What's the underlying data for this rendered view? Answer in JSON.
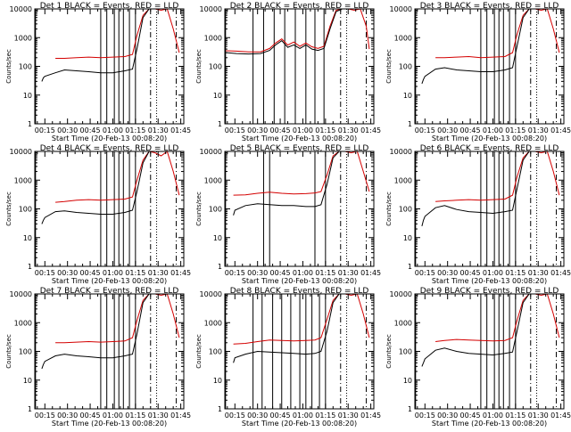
{
  "chart_data": [
    {
      "type": "line",
      "title": "Det 1  BLACK = Events, RED = LLD",
      "xlabel": "Start Time (20-Feb-13 00:08:20)",
      "ylabel": "Counts/sec",
      "xlim_minutes": [
        8.33,
        107
      ],
      "ylim": [
        1,
        10000
      ],
      "yscale": "log",
      "x_ticks": [
        "00:15",
        "00:30",
        "00:45",
        "01:00",
        "01:15",
        "01:30",
        "01:45"
      ],
      "y_ticks": [
        "1",
        "10",
        "100",
        "1000",
        "10000"
      ],
      "solid_lines_minutes": [
        8.8,
        52,
        56,
        61,
        64,
        67,
        71,
        75
      ],
      "dashdot_lines_minutes": [
        85,
        102
      ],
      "dotted_lines_minutes": [
        89
      ],
      "series": [
        {
          "color": "#d40000",
          "x": [
            22,
            28,
            36,
            44,
            52,
            60,
            68,
            73,
            76,
            80,
            84,
            88,
            92,
            96,
            100,
            104
          ],
          "values": [
            190,
            190,
            200,
            210,
            200,
            210,
            220,
            260,
            1200,
            6000,
            12000,
            12000,
            9000,
            12000,
            2000,
            300
          ]
        },
        {
          "color": "#000000",
          "x": [
            13,
            14,
            15,
            22,
            28,
            36,
            44,
            52,
            60,
            68,
            73,
            76,
            80,
            84,
            88
          ],
          "values": [
            30,
            40,
            45,
            60,
            75,
            70,
            65,
            60,
            60,
            70,
            80,
            400,
            5000,
            11000,
            12000
          ]
        }
      ]
    },
    {
      "type": "line",
      "title": "Det 2  BLACK = Events, RED = LLD",
      "xlabel": "Start Time (20-Feb-13 00:08:20)",
      "ylabel": "Counts/sec",
      "xlim_minutes": [
        8.33,
        107
      ],
      "ylim": [
        1,
        10000
      ],
      "yscale": "log",
      "x_ticks": [
        "00:15",
        "00:30",
        "00:45",
        "01:00",
        "01:15",
        "01:30",
        "01:45"
      ],
      "y_ticks": [
        "1",
        "10",
        "100",
        "1000",
        "10000"
      ],
      "solid_lines_minutes": [
        8.8,
        27,
        34,
        41,
        48,
        55,
        62,
        68,
        74
      ],
      "dashdot_lines_minutes": [
        85,
        102
      ],
      "dotted_lines_minutes": [
        89
      ],
      "series": [
        {
          "color": "#d40000",
          "x": [
            9,
            16,
            24,
            32,
            38,
            42,
            46,
            50,
            54,
            58,
            62,
            66,
            70,
            74,
            78,
            82,
            86,
            90,
            94,
            98,
            102,
            104
          ],
          "values": [
            350,
            340,
            320,
            320,
            420,
            650,
            900,
            550,
            700,
            500,
            650,
            480,
            420,
            500,
            2500,
            9000,
            12000,
            12000,
            9000,
            12000,
            2500,
            400
          ]
        },
        {
          "color": "#000000",
          "x": [
            9,
            16,
            24,
            32,
            38,
            42,
            46,
            50,
            54,
            58,
            62,
            66,
            70,
            74,
            78,
            82,
            86,
            90
          ],
          "values": [
            300,
            280,
            270,
            280,
            360,
            560,
            780,
            460,
            560,
            420,
            560,
            400,
            360,
            420,
            2000,
            8000,
            11000,
            12000
          ]
        }
      ]
    },
    {
      "type": "line",
      "title": "Det 3  BLACK = Events, RED = LLD",
      "xlabel": "Start Time (20-Feb-13 00:08:20)",
      "ylabel": "Counts/sec",
      "xlim_minutes": [
        8.33,
        107
      ],
      "ylim": [
        1,
        10000
      ],
      "yscale": "log",
      "x_ticks": [
        "00:15",
        "00:30",
        "00:45",
        "01:00",
        "01:15",
        "01:30",
        "01:45"
      ],
      "y_ticks": [
        "1",
        "10",
        "100",
        "1000",
        "10000"
      ],
      "solid_lines_minutes": [
        8.8,
        52,
        56,
        61,
        64,
        67,
        71,
        75
      ],
      "dashdot_lines_minutes": [
        85,
        102
      ],
      "dotted_lines_minutes": [
        89
      ],
      "series": [
        {
          "color": "#d40000",
          "x": [
            22,
            28,
            36,
            44,
            52,
            60,
            68,
            73,
            76,
            80,
            84,
            88,
            92,
            96,
            100,
            104
          ],
          "values": [
            200,
            200,
            210,
            220,
            200,
            210,
            220,
            300,
            1300,
            6000,
            12000,
            12000,
            9000,
            12000,
            2000,
            300
          ]
        },
        {
          "color": "#000000",
          "x": [
            13,
            14,
            15,
            22,
            28,
            36,
            44,
            52,
            60,
            68,
            73,
            76,
            80,
            84,
            88
          ],
          "values": [
            25,
            35,
            45,
            80,
            90,
            75,
            70,
            65,
            65,
            75,
            90,
            500,
            5000,
            11000,
            12000
          ]
        }
      ]
    },
    {
      "type": "line",
      "title": "Det 4  BLACK = Events, RED = LLD",
      "xlabel": "Start Time (20-Feb-13 00:08:20)",
      "ylabel": "Counts/sec",
      "xlim_minutes": [
        8.33,
        107
      ],
      "ylim": [
        1,
        10000
      ],
      "yscale": "log",
      "x_ticks": [
        "00:15",
        "00:30",
        "00:45",
        "01:00",
        "01:15",
        "01:30",
        "01:45"
      ],
      "y_ticks": [
        "1",
        "10",
        "100",
        "1000",
        "10000"
      ],
      "solid_lines_minutes": [
        8.8,
        52,
        56,
        61,
        64,
        67,
        71,
        75
      ],
      "dashdot_lines_minutes": [
        85,
        102
      ],
      "dotted_lines_minutes": [
        89
      ],
      "series": [
        {
          "color": "#d40000",
          "x": [
            22,
            28,
            36,
            44,
            52,
            60,
            68,
            73,
            76,
            80,
            84,
            88,
            92,
            96,
            100,
            104
          ],
          "values": [
            170,
            180,
            200,
            210,
            200,
            210,
            220,
            260,
            1000,
            5000,
            11000,
            9000,
            7000,
            10000,
            2000,
            300
          ]
        },
        {
          "color": "#000000",
          "x": [
            13,
            14,
            15,
            22,
            28,
            36,
            44,
            52,
            60,
            68,
            73,
            76,
            80,
            84,
            88
          ],
          "values": [
            30,
            40,
            50,
            80,
            85,
            75,
            70,
            65,
            65,
            75,
            90,
            400,
            4000,
            10000,
            11000
          ]
        }
      ]
    },
    {
      "type": "line",
      "title": "Det 5  BLACK = Events, RED = LLD",
      "xlabel": "Start Time (20-Feb-13 00:08:20)",
      "ylabel": "Counts/sec",
      "xlim_minutes": [
        8.33,
        107
      ],
      "ylim": [
        1,
        10000
      ],
      "yscale": "log",
      "x_ticks": [
        "00:15",
        "00:30",
        "00:45",
        "01:00",
        "01:15",
        "01:30",
        "01:45"
      ],
      "y_ticks": [
        "1",
        "10",
        "100",
        "1000",
        "10000"
      ],
      "solid_lines_minutes": [
        8.8,
        34,
        38,
        68,
        75
      ],
      "dashdot_lines_minutes": [
        85,
        102
      ],
      "dotted_lines_minutes": [
        89
      ],
      "series": [
        {
          "color": "#d40000",
          "x": [
            14,
            22,
            30,
            38,
            46,
            54,
            62,
            68,
            72,
            76,
            80,
            84,
            88,
            92,
            96,
            100,
            104
          ],
          "values": [
            300,
            310,
            350,
            380,
            350,
            330,
            340,
            360,
            400,
            1500,
            7000,
            12000,
            12000,
            9000,
            12000,
            2000,
            400
          ]
        },
        {
          "color": "#000000",
          "x": [
            14,
            15,
            22,
            30,
            38,
            46,
            54,
            62,
            68,
            72,
            76,
            80,
            84,
            88
          ],
          "values": [
            60,
            90,
            130,
            150,
            140,
            130,
            130,
            120,
            120,
            140,
            700,
            6000,
            11000,
            12000
          ]
        }
      ]
    },
    {
      "type": "line",
      "title": "Det 6  BLACK = Events, RED = LLD",
      "xlabel": "Start Time (20-Feb-13 00:08:20)",
      "ylabel": "Counts/sec",
      "xlim_minutes": [
        8.33,
        107
      ],
      "ylim": [
        1,
        10000
      ],
      "yscale": "log",
      "x_ticks": [
        "00:15",
        "00:30",
        "00:45",
        "01:00",
        "01:15",
        "01:30",
        "01:45"
      ],
      "y_ticks": [
        "1",
        "10",
        "100",
        "1000",
        "10000"
      ],
      "solid_lines_minutes": [
        8.8,
        52,
        56,
        61,
        64,
        67,
        71,
        75
      ],
      "dashdot_lines_minutes": [
        85,
        102
      ],
      "dotted_lines_minutes": [
        89
      ],
      "series": [
        {
          "color": "#d40000",
          "x": [
            22,
            28,
            36,
            44,
            52,
            60,
            68,
            73,
            76,
            80,
            84,
            88,
            92,
            96,
            100,
            104
          ],
          "values": [
            180,
            190,
            200,
            210,
            200,
            210,
            220,
            300,
            1300,
            6000,
            12000,
            12000,
            9000,
            12000,
            2000,
            300
          ]
        },
        {
          "color": "#000000",
          "x": [
            13,
            14,
            15,
            22,
            28,
            36,
            44,
            52,
            60,
            68,
            73,
            76,
            80,
            84,
            88
          ],
          "values": [
            25,
            40,
            55,
            110,
            130,
            95,
            80,
            75,
            70,
            80,
            90,
            500,
            5000,
            11000,
            12000
          ]
        }
      ]
    },
    {
      "type": "line",
      "title": "Det 7  BLACK = Events, RED = LLD",
      "xlabel": "Start Time (20-Feb-13 00:08:20)",
      "ylabel": "Counts/sec",
      "xlim_minutes": [
        8.33,
        107
      ],
      "ylim": [
        1,
        10000
      ],
      "yscale": "log",
      "x_ticks": [
        "00:15",
        "00:30",
        "00:45",
        "01:00",
        "01:15",
        "01:30",
        "01:45"
      ],
      "y_ticks": [
        "1",
        "10",
        "100",
        "1000",
        "10000"
      ],
      "solid_lines_minutes": [
        8.8,
        52,
        56,
        61,
        64,
        67,
        71,
        75
      ],
      "dashdot_lines_minutes": [
        85,
        102
      ],
      "dotted_lines_minutes": [
        89
      ],
      "series": [
        {
          "color": "#d40000",
          "x": [
            22,
            28,
            36,
            44,
            52,
            60,
            68,
            73,
            76,
            80,
            84,
            88,
            92,
            96,
            100,
            104
          ],
          "values": [
            200,
            200,
            210,
            220,
            210,
            220,
            230,
            300,
            1200,
            6000,
            12000,
            12000,
            9000,
            12000,
            2000,
            300
          ]
        },
        {
          "color": "#000000",
          "x": [
            13,
            14,
            15,
            22,
            28,
            36,
            44,
            52,
            60,
            68,
            73,
            76,
            80,
            84,
            88
          ],
          "values": [
            25,
            35,
            45,
            70,
            80,
            70,
            65,
            60,
            60,
            70,
            80,
            400,
            5000,
            11000,
            12000
          ]
        }
      ]
    },
    {
      "type": "line",
      "title": "Det 8  BLACK = Events, RED = LLD",
      "xlabel": "Start Time (20-Feb-13 00:08:20)",
      "ylabel": "Counts/sec",
      "xlim_minutes": [
        8.33,
        107
      ],
      "ylim": [
        1,
        10000
      ],
      "yscale": "log",
      "x_ticks": [
        "00:15",
        "00:30",
        "00:45",
        "01:00",
        "01:15",
        "01:30",
        "01:45"
      ],
      "y_ticks": [
        "1",
        "10",
        "100",
        "1000",
        "10000"
      ],
      "solid_lines_minutes": [
        8.8,
        27,
        33,
        40,
        46,
        52,
        58,
        62,
        66,
        71,
        75
      ],
      "dashdot_lines_minutes": [
        85,
        102
      ],
      "dotted_lines_minutes": [
        89
      ],
      "series": [
        {
          "color": "#d40000",
          "x": [
            14,
            22,
            30,
            38,
            46,
            54,
            62,
            68,
            72,
            76,
            80,
            84,
            88,
            92,
            96,
            100,
            104
          ],
          "values": [
            180,
            190,
            220,
            250,
            240,
            230,
            240,
            250,
            300,
            1300,
            6000,
            12000,
            12000,
            9000,
            12000,
            2000,
            300
          ]
        },
        {
          "color": "#000000",
          "x": [
            14,
            15,
            22,
            30,
            38,
            46,
            54,
            62,
            68,
            72,
            76,
            80,
            84,
            88
          ],
          "values": [
            40,
            60,
            80,
            100,
            95,
            90,
            85,
            80,
            85,
            100,
            500,
            5000,
            11000,
            12000
          ]
        }
      ]
    },
    {
      "type": "line",
      "title": "Det 9  BLACK = Events, RED = LLD",
      "xlabel": "Start Time (20-Feb-13 00:08:20)",
      "ylabel": "Counts/sec",
      "xlim_minutes": [
        8.33,
        107
      ],
      "ylim": [
        1,
        10000
      ],
      "yscale": "log",
      "x_ticks": [
        "00:15",
        "00:30",
        "00:45",
        "01:00",
        "01:15",
        "01:30",
        "01:45"
      ],
      "y_ticks": [
        "1",
        "10",
        "100",
        "1000",
        "10000"
      ],
      "solid_lines_minutes": [
        8.8,
        52,
        56,
        61,
        64,
        67,
        71,
        75
      ],
      "dashdot_lines_minutes": [
        85,
        102
      ],
      "dotted_lines_minutes": [
        89
      ],
      "series": [
        {
          "color": "#d40000",
          "x": [
            22,
            28,
            36,
            44,
            52,
            60,
            68,
            73,
            76,
            80,
            84,
            88,
            92,
            96,
            100,
            104
          ],
          "values": [
            220,
            240,
            260,
            250,
            240,
            230,
            240,
            300,
            1200,
            6000,
            12000,
            12000,
            9000,
            12000,
            2000,
            300
          ]
        },
        {
          "color": "#000000",
          "x": [
            13,
            14,
            15,
            22,
            28,
            36,
            44,
            52,
            60,
            68,
            73,
            76,
            80,
            84,
            88
          ],
          "values": [
            30,
            40,
            55,
            110,
            130,
            100,
            85,
            80,
            75,
            85,
            95,
            500,
            5000,
            11000,
            12000
          ]
        }
      ]
    }
  ]
}
